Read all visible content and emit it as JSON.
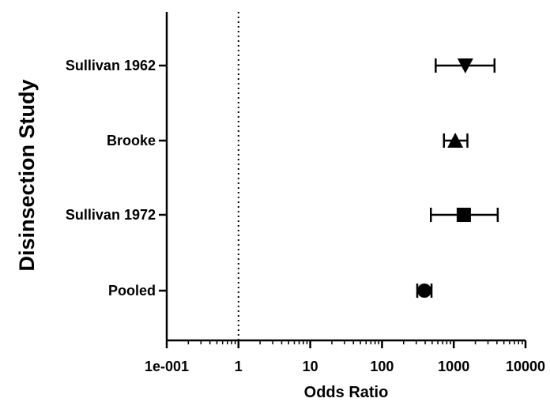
{
  "chart_data": {
    "type": "forest",
    "xlabel": "Odds Ratio",
    "ylabel": "Disinsection Study",
    "xscale": "log",
    "xlim": [
      0.1,
      10000
    ],
    "x_tick_labels": [
      "1e-001",
      "1",
      "10",
      "100",
      "1000",
      "10000"
    ],
    "reference_line": {
      "x": 1,
      "style": "dotted"
    },
    "grid": false,
    "legend": "none",
    "studies": [
      {
        "label": "Sullivan 1962",
        "odds_ratio": 1450,
        "ci_low": 560,
        "ci_high": 3700,
        "marker": "triangle-down"
      },
      {
        "label": "Brooke",
        "odds_ratio": 1050,
        "ci_low": 730,
        "ci_high": 1550,
        "marker": "triangle-up"
      },
      {
        "label": "Sullivan 1972",
        "odds_ratio": 1380,
        "ci_low": 480,
        "ci_high": 4100,
        "marker": "square"
      },
      {
        "label": "Pooled",
        "odds_ratio": 390,
        "ci_low": 310,
        "ci_high": 490,
        "marker": "circle"
      }
    ],
    "colors": {
      "ink": "#000000",
      "background": "#ffffff"
    }
  }
}
